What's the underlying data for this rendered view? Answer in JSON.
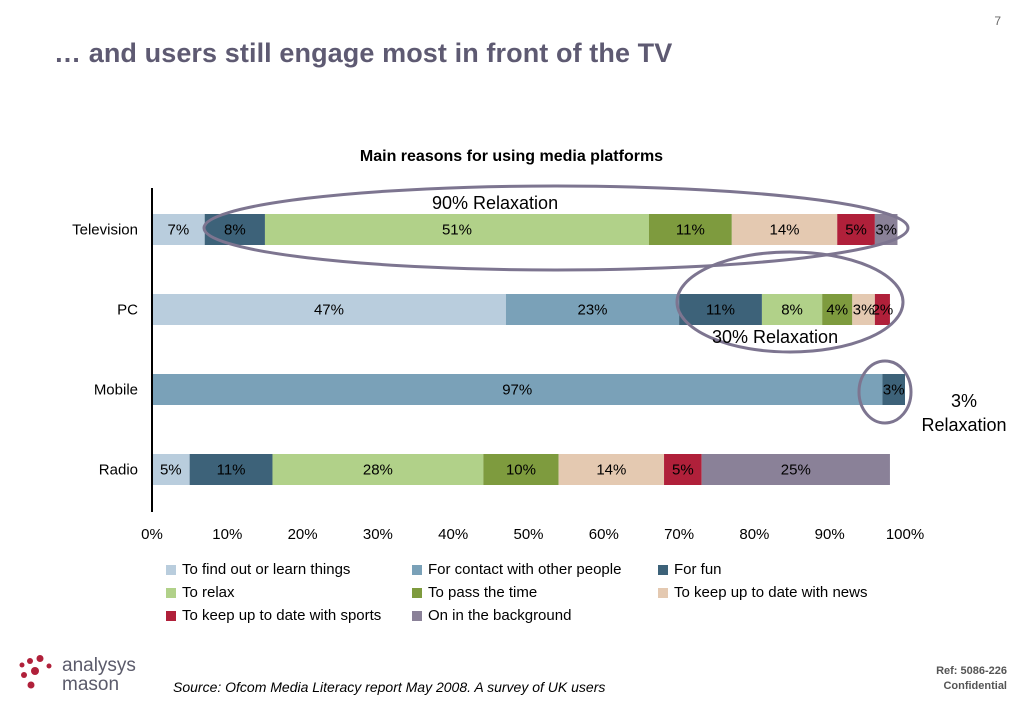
{
  "page": {
    "number": "7",
    "title": "… and users still engage most in front of the TV"
  },
  "chart_data": {
    "type": "bar",
    "orientation": "horizontal",
    "stacked": "percent",
    "title": "Main reasons for using media platforms",
    "categories": [
      "Television",
      "PC",
      "Mobile",
      "Radio"
    ],
    "series": [
      {
        "name": "To find out or learn things",
        "color": "#b9cddd",
        "values": [
          7,
          47,
          0,
          5
        ],
        "labels": [
          "7%",
          "47%",
          "",
          "5%"
        ]
      },
      {
        "name": "For contact with other people",
        "color": "#7aa1b8",
        "values": [
          0,
          23,
          97,
          0
        ],
        "labels": [
          "",
          "23%",
          "97%",
          ""
        ]
      },
      {
        "name": "For fun",
        "color": "#3d6279",
        "values": [
          8,
          11,
          3,
          11
        ],
        "labels": [
          "8%",
          "11%",
          "3%",
          "11%"
        ]
      },
      {
        "name": "To relax",
        "color": "#b1d189",
        "values": [
          51,
          8,
          0,
          28
        ],
        "labels": [
          "51%",
          "8%",
          "",
          "28%"
        ]
      },
      {
        "name": "To pass the time",
        "color": "#7e9b3e",
        "values": [
          11,
          4,
          0,
          10
        ],
        "labels": [
          "11%",
          "4%",
          "",
          "10%"
        ]
      },
      {
        "name": "To keep up to date with news",
        "color": "#e4c9b1",
        "values": [
          14,
          3,
          0,
          14
        ],
        "labels": [
          "14%",
          "3%",
          "",
          "14%"
        ]
      },
      {
        "name": "To keep up to date with sports",
        "color": "#b0203a",
        "values": [
          5,
          2,
          0,
          5
        ],
        "labels": [
          "5%",
          "2%",
          "",
          "5%"
        ]
      },
      {
        "name": "On in the background",
        "color": "#8a8198",
        "values": [
          3,
          0,
          0,
          25
        ],
        "labels": [
          "3%",
          "",
          "",
          "25%"
        ]
      }
    ],
    "xlim": [
      0,
      100
    ],
    "xticks": [
      "0%",
      "10%",
      "20%",
      "30%",
      "40%",
      "50%",
      "60%",
      "70%",
      "80%",
      "90%",
      "100%"
    ],
    "legend_position": "bottom",
    "annotations": [
      {
        "text": "90% Relaxation",
        "target": "Television"
      },
      {
        "text": "30% Relaxation",
        "target": "PC"
      },
      {
        "text": "3% Relaxation",
        "target": "Mobile"
      }
    ],
    "annotation_color": "#7d7590"
  },
  "footer": {
    "logo_line1": "analysys",
    "logo_line2": "mason",
    "source": "Source: Ofcom Media Literacy report May 2008. A survey of UK users",
    "ref": "Ref: 5086-226",
    "confidential": "Confidential"
  }
}
